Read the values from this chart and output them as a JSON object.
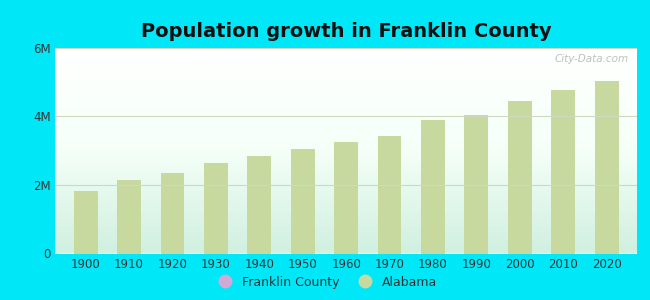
{
  "title": "Population growth in Franklin County",
  "years": [
    1900,
    1910,
    1920,
    1930,
    1940,
    1950,
    1960,
    1970,
    1980,
    1990,
    2000,
    2010,
    2020
  ],
  "alabama_values": [
    1830000,
    2138000,
    2350000,
    2646000,
    2833000,
    3062000,
    3267000,
    3444000,
    3894000,
    4041000,
    4447000,
    4779000,
    5030000
  ],
  "bar_color_alabama": "#c8d9a0",
  "bar_color_franklin": "#d4a8d4",
  "background_outer": "#00e8f8",
  "ylim": [
    0,
    6000000
  ],
  "yticks": [
    0,
    2000000,
    4000000,
    6000000
  ],
  "ytick_labels": [
    "0",
    "2M",
    "4M",
    "6M"
  ],
  "grid_color": "#d0d8c0",
  "watermark": "City-Data.com",
  "legend_entries": [
    "Franklin County",
    "Alabama"
  ],
  "bar_width": 0.55,
  "title_fontsize": 14,
  "tick_fontsize": 8.5,
  "legend_fontsize": 9
}
